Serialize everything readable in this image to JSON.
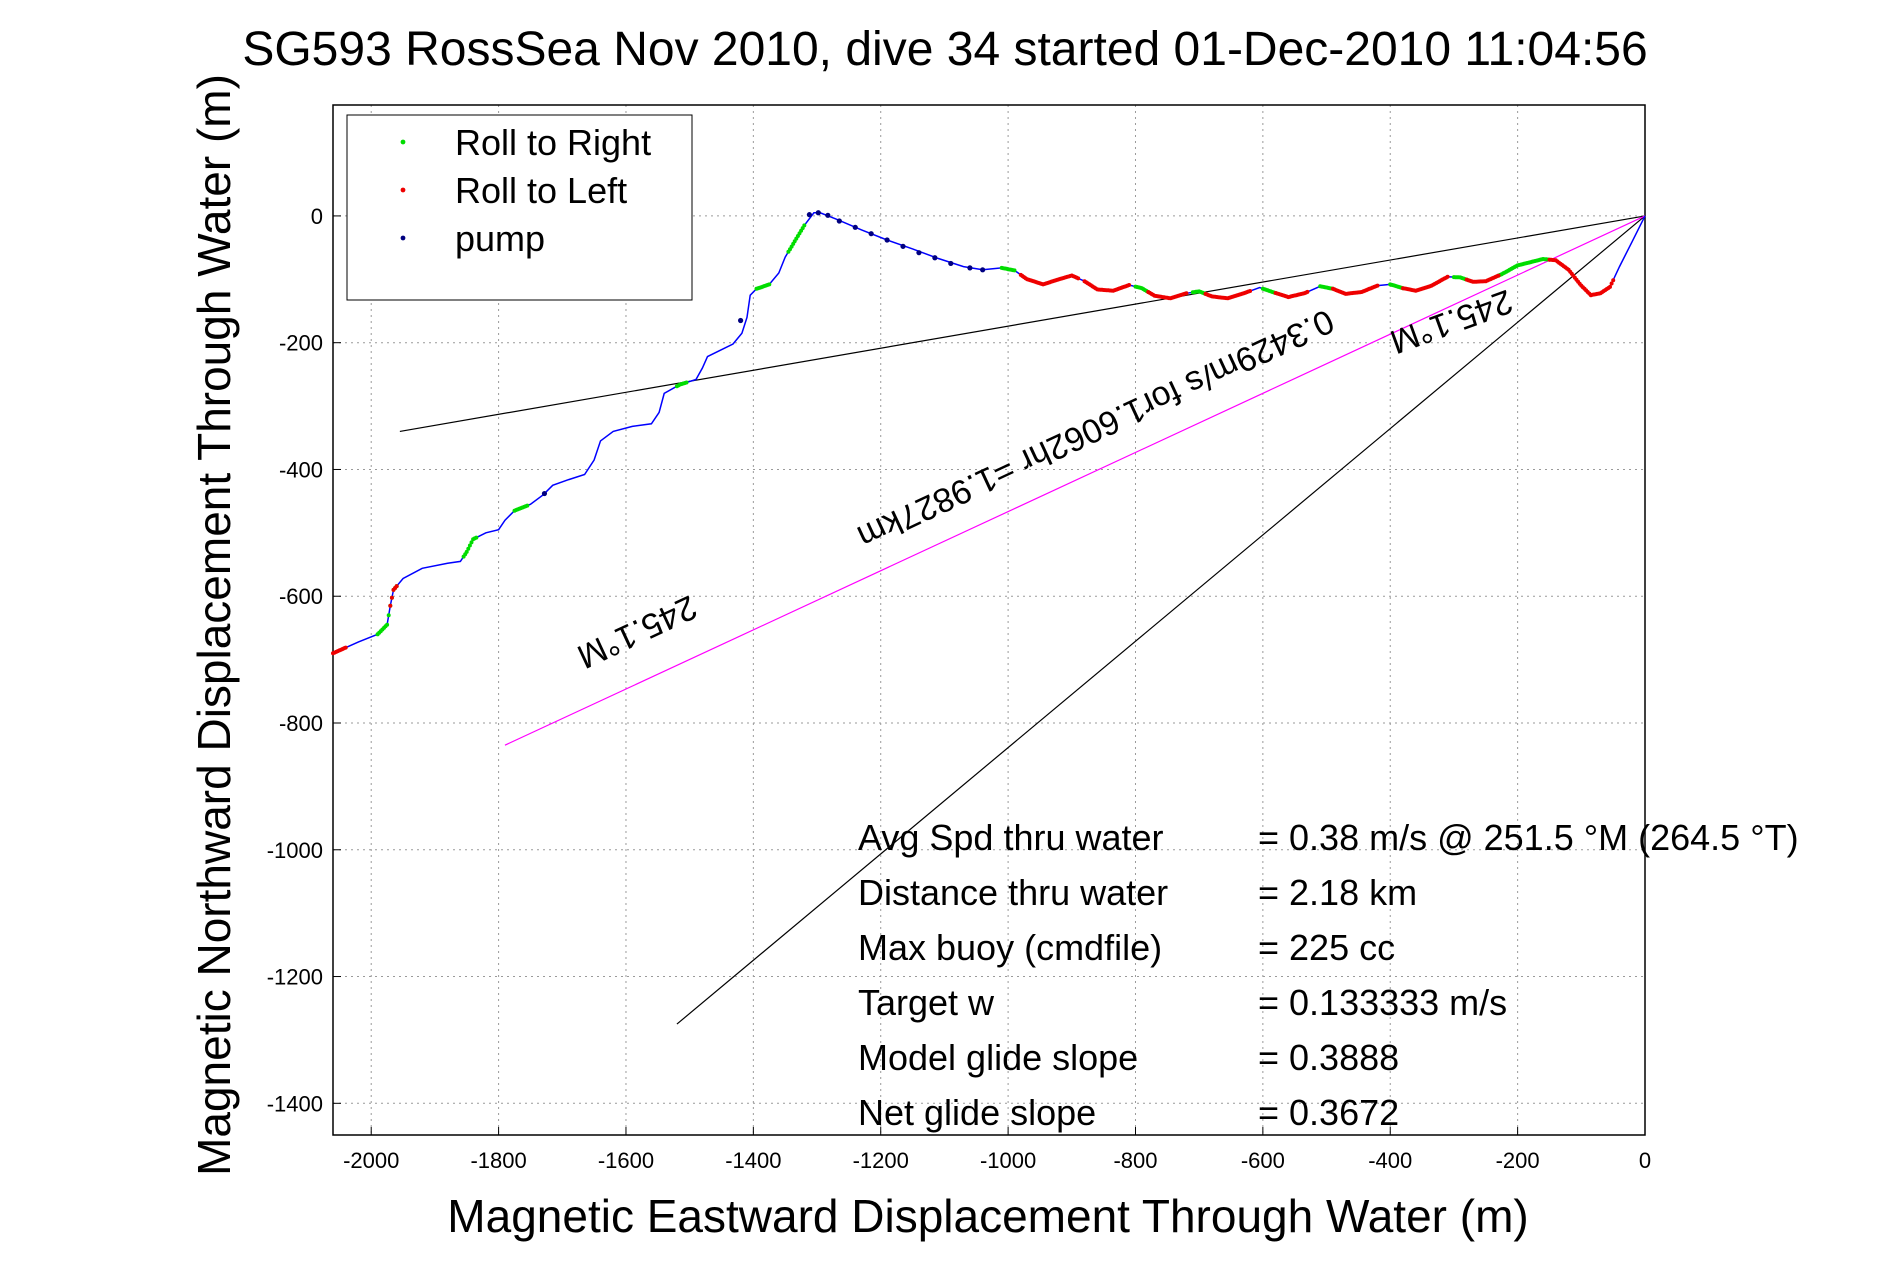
{
  "chart_data": {
    "type": "line",
    "title": "SG593 RossSea Nov 2010, dive 34 started 01-Dec-2010 11:04:56",
    "xlabel": "Magnetic Eastward Displacement Through Water (m)",
    "ylabel": "Magnetic Northward Displacement Through Water (m)",
    "xlim": [
      -2060,
      0
    ],
    "ylim": [
      -1450,
      175
    ],
    "x_ticks": [
      -2000,
      -1800,
      -1600,
      -1400,
      -1200,
      -1000,
      -800,
      -600,
      -400,
      -200,
      0
    ],
    "y_ticks": [
      0,
      -200,
      -400,
      -600,
      -800,
      -1000,
      -1200,
      -1400
    ],
    "grid": true,
    "legend_position": "top-left",
    "legend": [
      {
        "label": "Roll to Right",
        "color": "#00dd00"
      },
      {
        "label": "Roll to Left",
        "color": "#ee0000"
      },
      {
        "label": "pump",
        "color": "#000080"
      }
    ],
    "track_color": "#0000ff",
    "track": [
      [
        -2060,
        -690
      ],
      [
        -2020,
        -672
      ],
      [
        -1990,
        -660
      ],
      [
        -1975,
        -645
      ],
      [
        -1970,
        -615
      ],
      [
        -1965,
        -590
      ],
      [
        -1950,
        -572
      ],
      [
        -1920,
        -556
      ],
      [
        -1880,
        -548
      ],
      [
        -1860,
        -545
      ],
      [
        -1850,
        -530
      ],
      [
        -1840,
        -510
      ],
      [
        -1820,
        -500
      ],
      [
        -1800,
        -495
      ],
      [
        -1790,
        -480
      ],
      [
        -1775,
        -465
      ],
      [
        -1750,
        -455
      ],
      [
        -1730,
        -440
      ],
      [
        -1715,
        -425
      ],
      [
        -1690,
        -416
      ],
      [
        -1665,
        -408
      ],
      [
        -1650,
        -385
      ],
      [
        -1640,
        -355
      ],
      [
        -1620,
        -340
      ],
      [
        -1590,
        -332
      ],
      [
        -1560,
        -328
      ],
      [
        -1548,
        -310
      ],
      [
        -1540,
        -280
      ],
      [
        -1515,
        -266
      ],
      [
        -1490,
        -258
      ],
      [
        -1480,
        -240
      ],
      [
        -1472,
        -222
      ],
      [
        -1452,
        -212
      ],
      [
        -1432,
        -202
      ],
      [
        -1418,
        -185
      ],
      [
        -1410,
        -160
      ],
      [
        -1405,
        -125
      ],
      [
        -1395,
        -115
      ],
      [
        -1375,
        -108
      ],
      [
        -1360,
        -90
      ],
      [
        -1350,
        -65
      ],
      [
        -1335,
        -40
      ],
      [
        -1320,
        -15
      ],
      [
        -1305,
        5
      ],
      [
        -1295,
        5
      ],
      [
        -1270,
        -5
      ],
      [
        -1230,
        -22
      ],
      [
        -1190,
        -38
      ],
      [
        -1150,
        -52
      ],
      [
        -1110,
        -67
      ],
      [
        -1070,
        -80
      ],
      [
        -1040,
        -85
      ],
      [
        -1010,
        -82
      ],
      [
        -990,
        -86
      ],
      [
        -970,
        -100
      ],
      [
        -945,
        -108
      ],
      [
        -920,
        -100
      ],
      [
        -900,
        -94
      ],
      [
        -880,
        -103
      ],
      [
        -860,
        -116
      ],
      [
        -835,
        -118
      ],
      [
        -810,
        -109
      ],
      [
        -790,
        -114
      ],
      [
        -770,
        -126
      ],
      [
        -745,
        -130
      ],
      [
        -720,
        -122
      ],
      [
        -700,
        -119
      ],
      [
        -680,
        -127
      ],
      [
        -655,
        -130
      ],
      [
        -630,
        -122
      ],
      [
        -605,
        -113
      ],
      [
        -585,
        -120
      ],
      [
        -560,
        -128
      ],
      [
        -535,
        -122
      ],
      [
        -510,
        -111
      ],
      [
        -490,
        -115
      ],
      [
        -470,
        -123
      ],
      [
        -445,
        -120
      ],
      [
        -420,
        -110
      ],
      [
        -400,
        -108
      ],
      [
        -380,
        -114
      ],
      [
        -360,
        -118
      ],
      [
        -335,
        -110
      ],
      [
        -310,
        -96
      ],
      [
        -290,
        -97
      ],
      [
        -270,
        -104
      ],
      [
        -250,
        -103
      ],
      [
        -225,
        -92
      ],
      [
        -200,
        -78
      ],
      [
        -180,
        -73
      ],
      [
        -160,
        -68
      ],
      [
        -140,
        -70
      ],
      [
        -120,
        -85
      ],
      [
        -100,
        -110
      ],
      [
        -85,
        -125
      ],
      [
        -70,
        -122
      ],
      [
        -55,
        -112
      ],
      [
        -40,
        -80
      ],
      [
        -20,
        -40
      ],
      [
        0,
        0
      ]
    ],
    "roll_right_segments": [
      [
        -1990,
        -1960
      ],
      [
        -1855,
        -1835
      ],
      [
        -1775,
        -1755
      ],
      [
        -1520,
        -1505
      ],
      [
        -1395,
        -1375
      ],
      [
        -1345,
        -1320
      ],
      [
        -1010,
        -990
      ],
      [
        -800,
        -780
      ],
      [
        -710,
        -690
      ],
      [
        -600,
        -580
      ],
      [
        -510,
        -490
      ],
      [
        -400,
        -380
      ],
      [
        -300,
        -280
      ],
      [
        -230,
        -150
      ]
    ],
    "roll_left_segments": [
      [
        -2060,
        -2040
      ],
      [
        -1970,
        -1960
      ],
      [
        -980,
        -890
      ],
      [
        -880,
        -810
      ],
      [
        -780,
        -720
      ],
      [
        -690,
        -620
      ],
      [
        -580,
        -530
      ],
      [
        -490,
        -420
      ],
      [
        -380,
        -310
      ],
      [
        -280,
        -230
      ],
      [
        -150,
        -50
      ]
    ],
    "pump_points": [
      [
        -1728,
        -438
      ],
      [
        -1420,
        -165
      ],
      [
        -1312,
        2
      ],
      [
        -1298,
        5
      ],
      [
        -1283,
        1
      ],
      [
        -1265,
        -8
      ],
      [
        -1240,
        -18
      ],
      [
        -1215,
        -28
      ],
      [
        -1190,
        -38
      ],
      [
        -1165,
        -48
      ],
      [
        -1140,
        -58
      ],
      [
        -1115,
        -66
      ],
      [
        -1090,
        -75
      ],
      [
        -1060,
        -82
      ],
      [
        -1040,
        -85
      ]
    ],
    "reference_lines": [
      {
        "name": "black-line-1",
        "color": "#000000",
        "from": [
          -1955,
          -340
        ],
        "to": [
          0,
          0
        ]
      },
      {
        "name": "black-line-2",
        "color": "#000000",
        "from": [
          -1520,
          -1275
        ],
        "to": [
          0,
          0
        ]
      },
      {
        "name": "magenta-line",
        "color": "#ff00ff",
        "from": [
          -1790,
          -835
        ],
        "to": [
          0,
          0
        ]
      }
    ],
    "annotations": [
      {
        "text": "245.1°M",
        "x": -1590,
        "y": -640,
        "rotate": 155
      },
      {
        "text": "0.3429m/s for1.6062hr =1.9827km",
        "x": -870,
        "y": -320,
        "rotate": 155
      },
      {
        "text": "245.1°M",
        "x": -310,
        "y": -150,
        "rotate": 160
      }
    ],
    "stats": [
      {
        "label": "Avg Spd thru water",
        "value": "=  0.38 m/s @ 251.5 °M (264.5 °T)"
      },
      {
        "label": "Distance thru water",
        "value": "=  2.18 km"
      },
      {
        "label": "Max buoy (cmdfile)",
        "value": "= 225 cc"
      },
      {
        "label": "Target w",
        "value": "= 0.133333 m/s"
      },
      {
        "label": "Model glide slope",
        "value": "= 0.3888"
      },
      {
        "label": "Net glide slope",
        "value": "= 0.3672"
      }
    ]
  }
}
